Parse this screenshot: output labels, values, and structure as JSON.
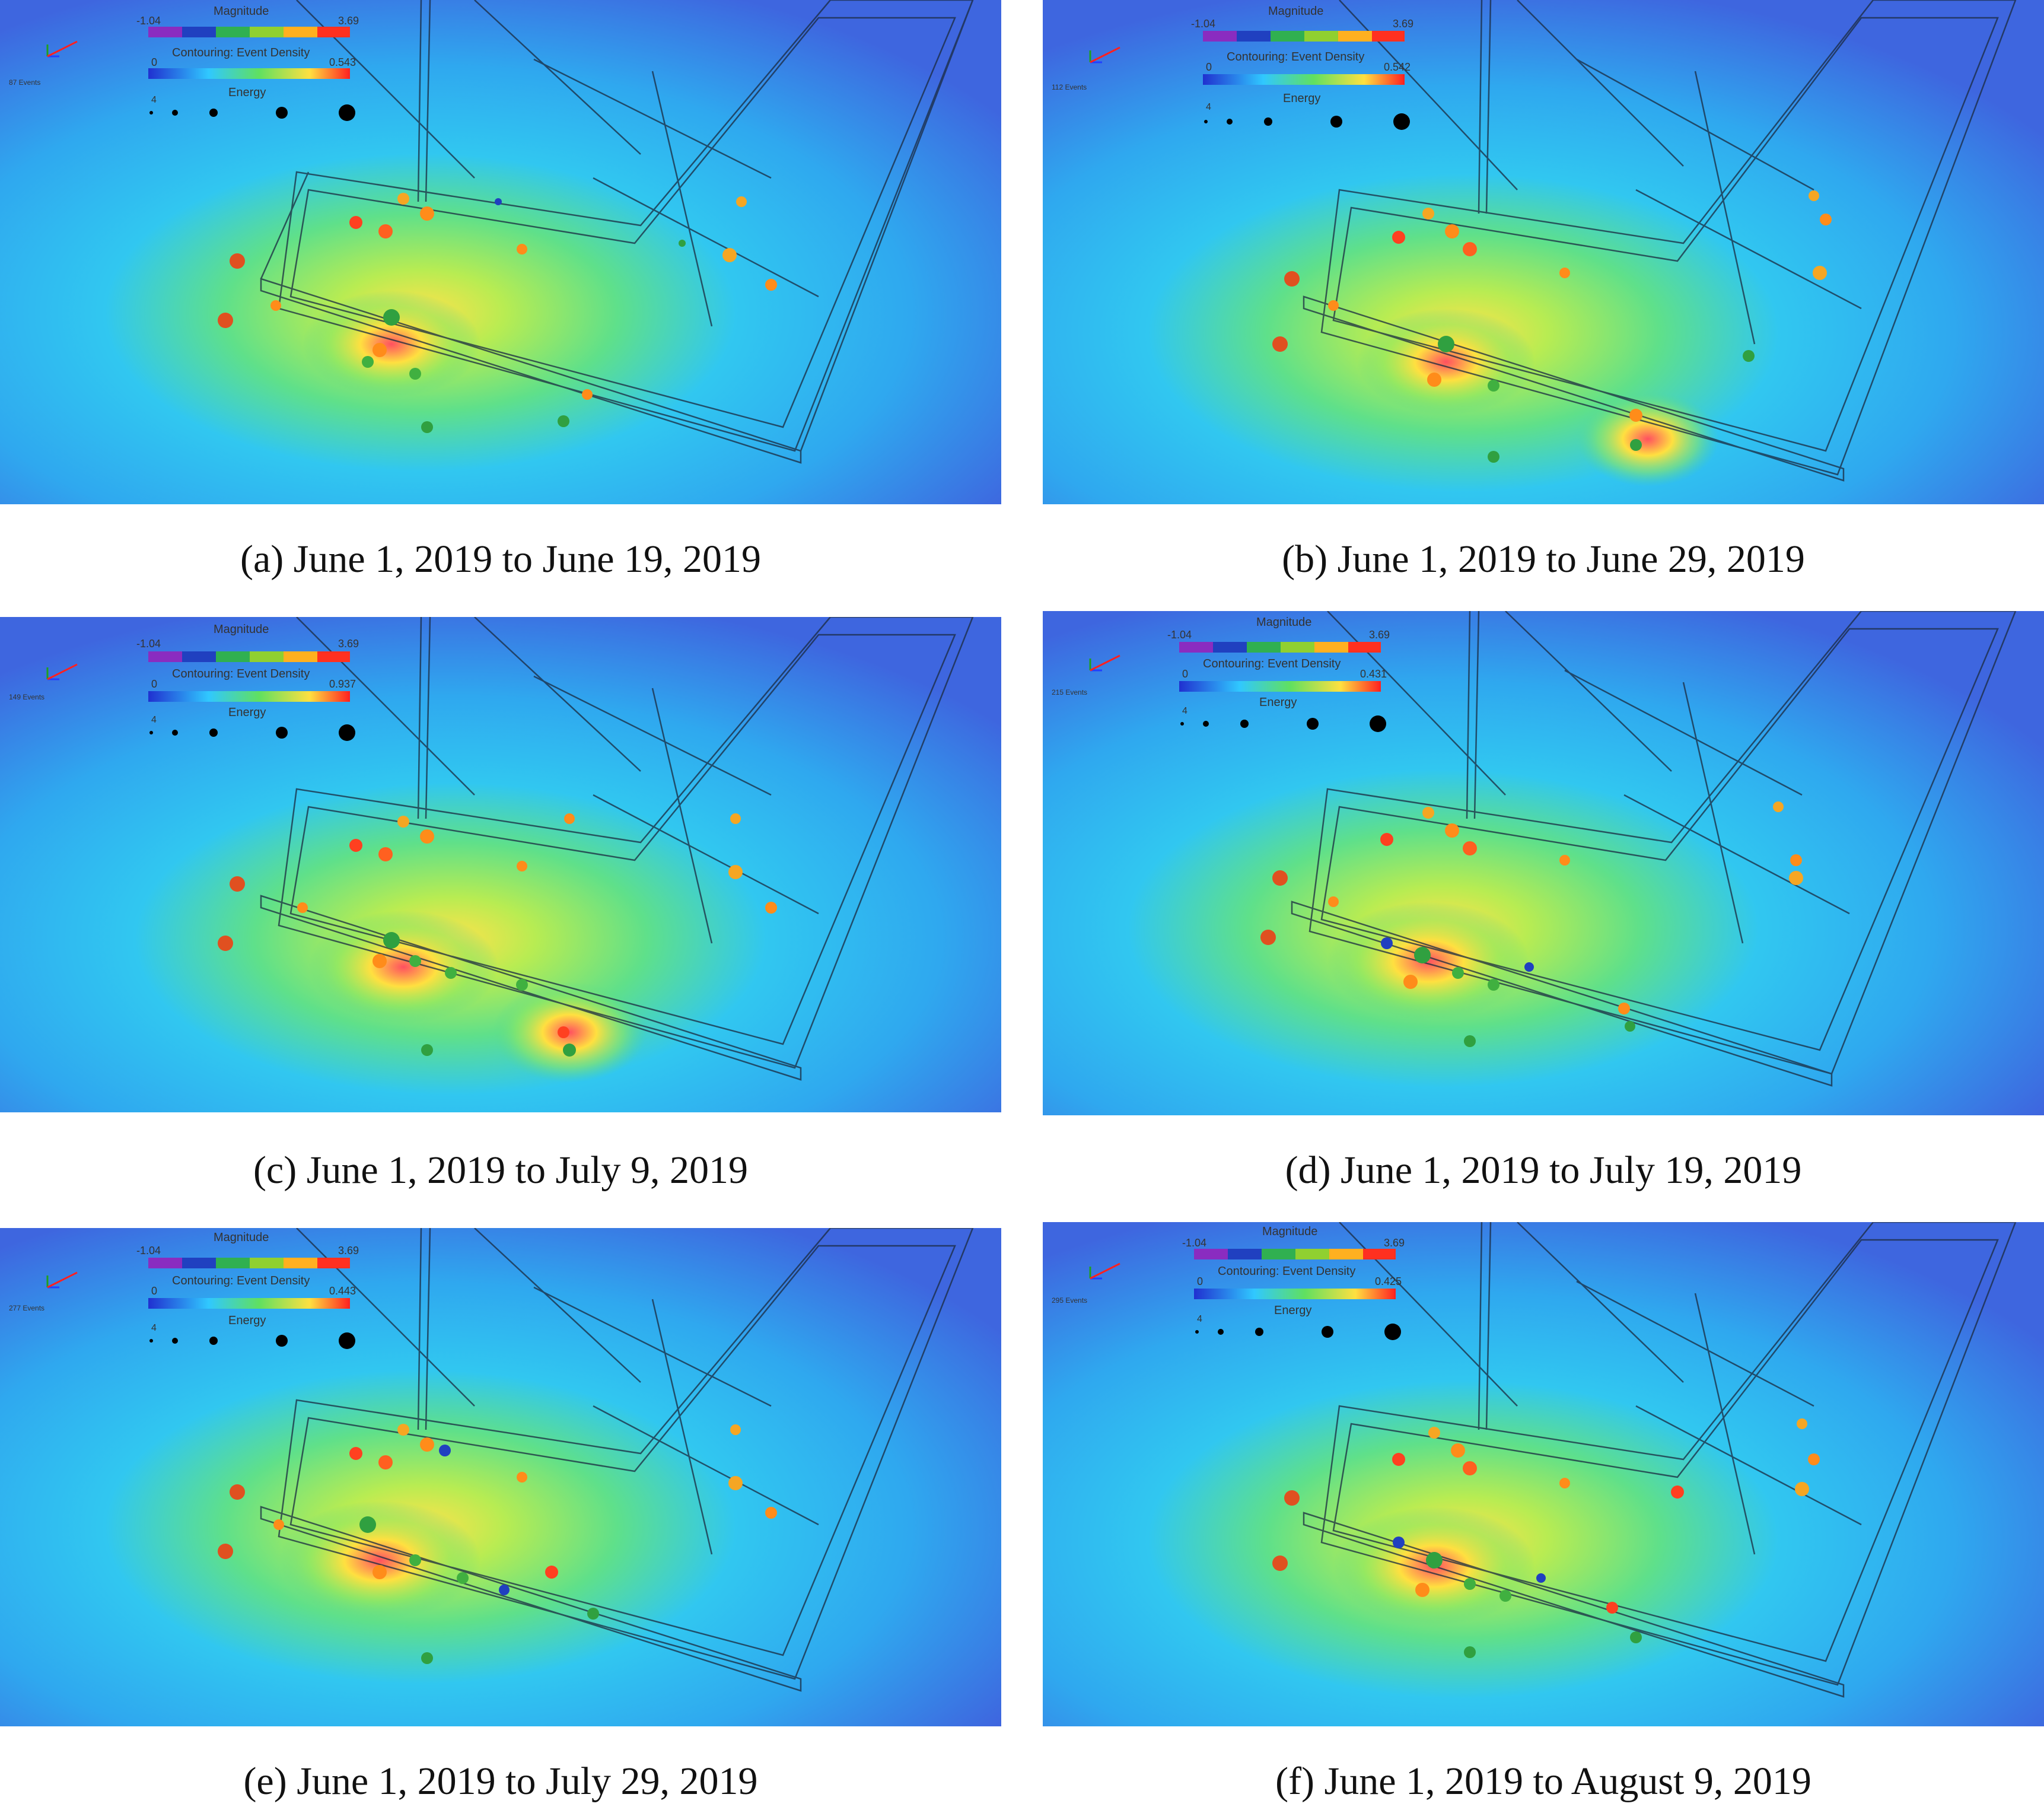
{
  "legend": {
    "magnitude_title": "Magnitude",
    "magnitude_min": "-1.04",
    "magnitude_max": "3.69",
    "contouring_title": "Contouring: Event Density",
    "density_min": "0",
    "energy_title": "Energy",
    "energy_min": "4"
  },
  "panels": [
    {
      "caption": "(a) June 1, 2019 to June 19, 2019",
      "events": "87 Events",
      "density_max": "0.543"
    },
    {
      "caption": "(b) June 1, 2019 to June 29, 2019",
      "events": "112 Events",
      "density_max": "0.542"
    },
    {
      "caption": "(c) June 1, 2019 to July 9, 2019",
      "events": "149 Events",
      "density_max": "0.937"
    },
    {
      "caption": "(d) June 1, 2019 to July 19, 2019",
      "events": "215 Events",
      "density_max": "0.431"
    },
    {
      "caption": "(e) June 1, 2019 to July 29, 2019",
      "events": "277 Events",
      "density_max": "0.443"
    },
    {
      "caption": "(f) June 1, 2019 to August 9, 2019",
      "events": "295 Events",
      "density_max": "0.425"
    }
  ],
  "colors": {
    "background": "#3f6ee0",
    "hot": "#ff4040",
    "warm": "#ffe040",
    "mid": "#60e080",
    "cool": "#30c8ff"
  }
}
